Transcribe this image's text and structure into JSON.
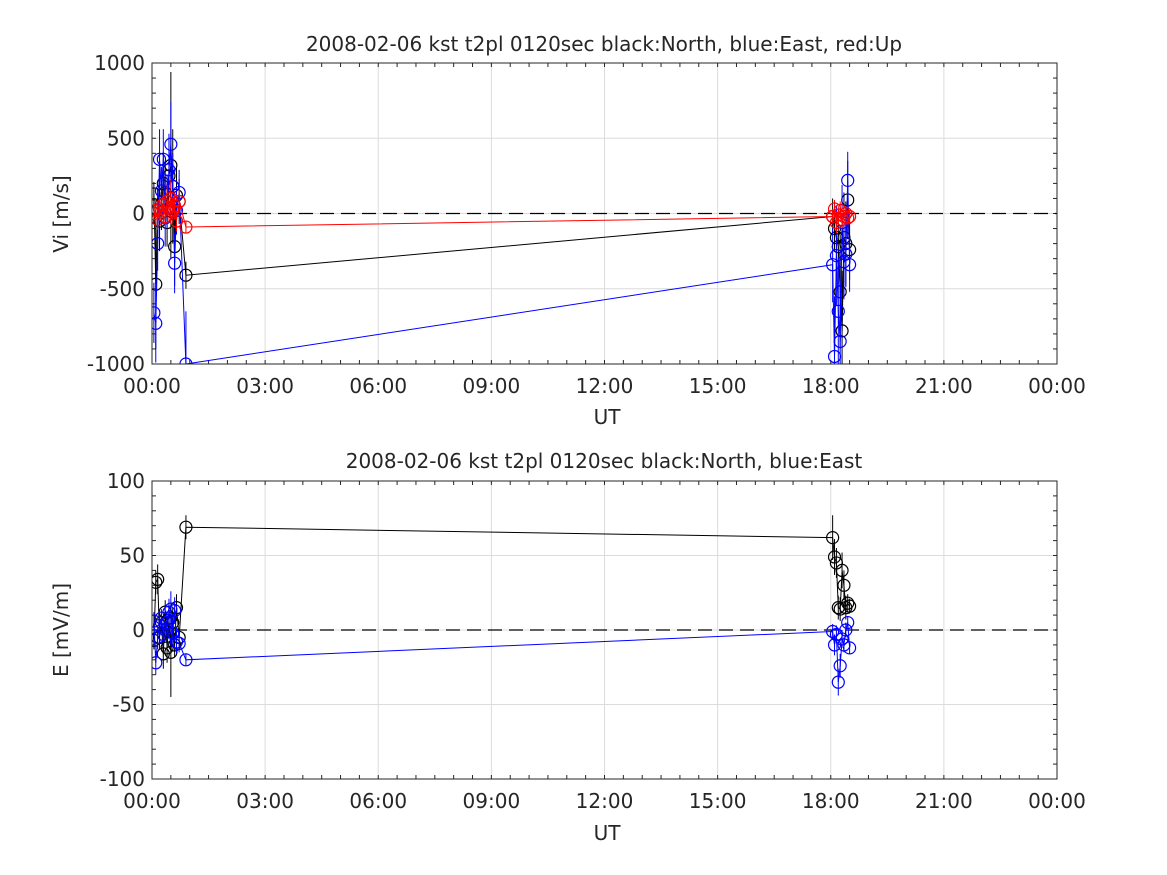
{
  "chart_data": [
    {
      "type": "scatter",
      "title": "2008-02-06 kst t2pl 0120sec black:North, blue:East, red:Up",
      "xlabel": "UT",
      "ylabel": "Vi [m/s]",
      "xlim": [
        "00:00",
        "24:00"
      ],
      "ylim": [
        -1000,
        1000
      ],
      "xticks": [
        "00:00",
        "03:00",
        "06:00",
        "09:00",
        "12:00",
        "15:00",
        "18:00",
        "21:00",
        "00:00"
      ],
      "yticks": [
        "1000",
        "500",
        "0",
        "-500",
        "-1000"
      ],
      "grid": true,
      "zero_line": "dashed",
      "series": [
        {
          "name": "North",
          "color": "#000000",
          "x_hours": [
            0.05,
            0.1,
            0.15,
            0.2,
            0.25,
            0.3,
            0.35,
            0.4,
            0.45,
            0.5,
            0.55,
            0.6,
            0.65,
            0.72,
            0.9,
            18.05,
            18.1,
            18.15,
            18.2,
            18.25,
            18.3,
            18.35,
            18.4,
            18.45,
            18.5
          ],
          "y": [
            130,
            -470,
            20,
            -50,
            60,
            200,
            140,
            -60,
            250,
            320,
            180,
            -220,
            120,
            80,
            -410,
            -20,
            -100,
            -160,
            -220,
            -520,
            -780,
            -160,
            -200,
            90,
            -240
          ],
          "err": [
            80,
            430,
            150,
            200,
            170,
            210,
            180,
            160,
            250,
            620,
            380,
            260,
            190,
            150,
            90,
            120,
            140,
            180,
            250,
            380,
            400,
            300,
            280,
            260,
            200
          ]
        },
        {
          "name": "East",
          "color": "#0000ff",
          "x_hours": [
            0.05,
            0.1,
            0.15,
            0.2,
            0.25,
            0.3,
            0.35,
            0.4,
            0.45,
            0.5,
            0.55,
            0.6,
            0.65,
            0.72,
            0.9,
            18.05,
            18.1,
            18.15,
            18.2,
            18.25,
            18.3,
            18.35,
            18.4,
            18.45,
            18.5
          ],
          "y": [
            -660,
            -730,
            -200,
            360,
            150,
            360,
            -30,
            80,
            290,
            460,
            180,
            -330,
            20,
            140,
            -1000,
            -340,
            -950,
            -280,
            -650,
            -850,
            -60,
            -320,
            -270,
            220,
            -340
          ],
          "err": [
            200,
            260,
            180,
            200,
            160,
            200,
            190,
            180,
            240,
            280,
            220,
            200,
            160,
            150,
            350,
            250,
            400,
            330,
            360,
            400,
            250,
            250,
            220,
            190,
            180
          ]
        },
        {
          "name": "Up",
          "color": "#ff0000",
          "x_hours": [
            0.05,
            0.1,
            0.15,
            0.2,
            0.25,
            0.3,
            0.35,
            0.4,
            0.45,
            0.5,
            0.55,
            0.6,
            0.65,
            0.72,
            0.9,
            18.05,
            18.1,
            18.15,
            18.2,
            18.25,
            18.3,
            18.35,
            18.4,
            18.45,
            18.5
          ],
          "y": [
            0,
            20,
            -40,
            30,
            10,
            60,
            -20,
            80,
            40,
            100,
            20,
            50,
            -50,
            80,
            -90,
            -20,
            30,
            -60,
            -10,
            20,
            -40,
            -20,
            0,
            -30,
            -20
          ],
          "err": [
            60,
            80,
            70,
            80,
            70,
            90,
            60,
            110,
            90,
            130,
            80,
            90,
            70,
            80,
            40,
            50,
            60,
            70,
            60,
            60,
            60,
            50,
            50,
            40,
            40
          ]
        }
      ]
    },
    {
      "type": "scatter",
      "title": "2008-02-06 kst t2pl 0120sec black:North, blue:East",
      "xlabel": "UT",
      "ylabel": "E [mV/m]",
      "xlim": [
        "00:00",
        "24:00"
      ],
      "ylim": [
        -100,
        100
      ],
      "xticks": [
        "00:00",
        "03:00",
        "06:00",
        "09:00",
        "12:00",
        "15:00",
        "18:00",
        "21:00",
        "00:00"
      ],
      "yticks": [
        "100",
        "50",
        "0",
        "-50",
        "-100"
      ],
      "grid": true,
      "zero_line": "dashed",
      "series": [
        {
          "name": "North",
          "color": "#000000",
          "x_hours": [
            0.05,
            0.1,
            0.15,
            0.2,
            0.25,
            0.3,
            0.35,
            0.4,
            0.45,
            0.5,
            0.55,
            0.6,
            0.65,
            0.72,
            0.9,
            18.05,
            18.1,
            18.15,
            18.2,
            18.25,
            18.3,
            18.35,
            18.4,
            18.45,
            18.5
          ],
          "y": [
            -7,
            32,
            34,
            -5,
            5,
            -16,
            12,
            -12,
            8,
            -15,
            5,
            -10,
            15,
            -5,
            69,
            62,
            49,
            45,
            15,
            14,
            40,
            30,
            15,
            18,
            16
          ],
          "err": [
            6,
            8,
            10,
            8,
            6,
            10,
            8,
            10,
            9,
            30,
            10,
            8,
            9,
            6,
            8,
            15,
            12,
            10,
            8,
            8,
            12,
            10,
            8,
            6,
            5
          ]
        },
        {
          "name": "East",
          "color": "#0000ff",
          "x_hours": [
            0.05,
            0.1,
            0.15,
            0.2,
            0.25,
            0.3,
            0.35,
            0.4,
            0.45,
            0.5,
            0.55,
            0.6,
            0.65,
            0.72,
            0.9,
            18.05,
            18.1,
            18.15,
            18.2,
            18.25,
            18.3,
            18.35,
            18.4,
            18.45,
            18.5
          ],
          "y": [
            6,
            -22,
            -5,
            3,
            8,
            -3,
            0,
            5,
            12,
            14,
            -2,
            13,
            -8,
            -9,
            -20,
            -1,
            -10,
            -3,
            -35,
            -24,
            -6,
            -10,
            0,
            5,
            -12
          ],
          "err": [
            6,
            8,
            8,
            7,
            6,
            8,
            6,
            8,
            9,
            12,
            8,
            9,
            8,
            6,
            4,
            5,
            7,
            6,
            9,
            8,
            6,
            5,
            5,
            4,
            4
          ]
        }
      ]
    }
  ]
}
